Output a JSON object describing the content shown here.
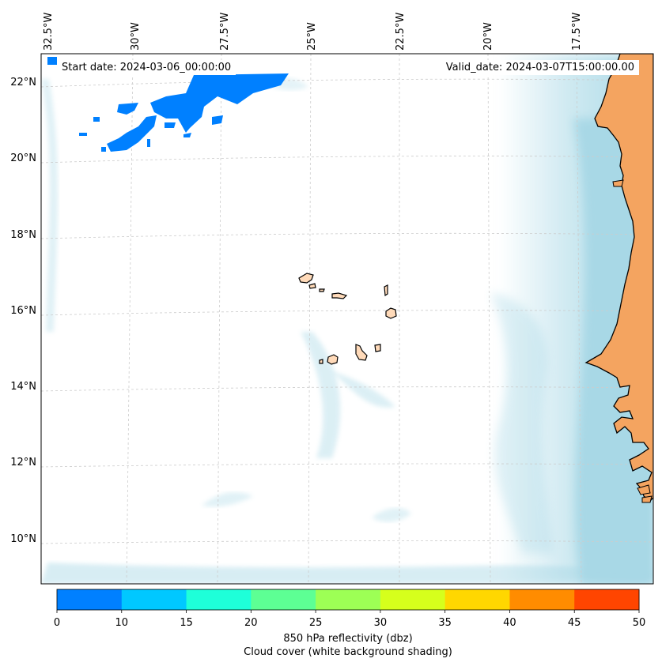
{
  "map": {
    "start_date": "Start date: 2024-03-06_00:00:00",
    "valid_date": "Valid_date: 2024-03-07T15:00:00.00",
    "longitude_labels": [
      "32.5°W",
      "30°W",
      "27.5°W",
      "25°W",
      "22.5°W",
      "20°W",
      "17.5°W"
    ],
    "latitude_labels": [
      "22°N",
      "20°N",
      "18°N",
      "16°N",
      "14°N",
      "12°N",
      "10°N"
    ],
    "colors": {
      "ocean_cloud": "#a8d8e6",
      "land": "#f4a460",
      "island_land": "#ffdab9",
      "reflectivity_low": "#0080ff",
      "gridline": "#cccccc"
    }
  },
  "colorbar": {
    "ticks": [
      "0",
      "10",
      "15",
      "20",
      "25",
      "30",
      "35",
      "40",
      "45",
      "50"
    ],
    "colors": [
      "#0080ff",
      "#00c8ff",
      "#1effd9",
      "#5dff94",
      "#9dff55",
      "#d6ff1c",
      "#ffd700",
      "#ff8c00",
      "#ff4500"
    ],
    "label_line1": "850 hPa reflectivity (dbz)",
    "label_line2": "Cloud cover (white background shading)"
  }
}
